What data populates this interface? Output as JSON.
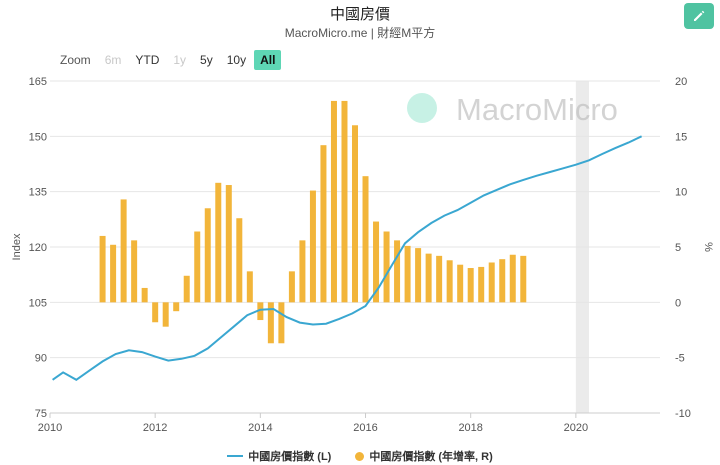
{
  "header": {
    "title": "中國房價",
    "subtitle": "MacroMicro.me | 財經M平方"
  },
  "toolbar": {
    "edit_icon": "pencil-icon"
  },
  "zoom": {
    "label": "Zoom",
    "buttons": [
      {
        "label": "6m",
        "state": "disabled"
      },
      {
        "label": "YTD",
        "state": "normal"
      },
      {
        "label": "1y",
        "state": "disabled"
      },
      {
        "label": "5y",
        "state": "normal"
      },
      {
        "label": "10y",
        "state": "normal"
      },
      {
        "label": "All",
        "state": "active"
      }
    ]
  },
  "watermark": "MacroMicro",
  "legend": {
    "line_label": "中國房價指數 (L)",
    "bar_label": "中國房價指數 (年增率, R)"
  },
  "colors": {
    "line": "#3aa7d1",
    "bar": "#f2b53a",
    "recession": "#ebebeb",
    "watermark": "#5fd6b4"
  },
  "chart_data": {
    "type": "bar+line",
    "title": "中國房價",
    "y_left": {
      "label": "Index",
      "min": 75,
      "max": 165,
      "ticks": [
        75,
        90,
        105,
        120,
        135,
        150,
        165
      ]
    },
    "y_right": {
      "label": "%",
      "min": -10,
      "max": 20,
      "ticks": [
        -10,
        -5,
        0,
        5,
        10,
        15,
        20
      ]
    },
    "x_ticks": [
      "2010",
      "2012",
      "2014",
      "2016",
      "2018",
      "2020"
    ],
    "x_range": [
      2010.0,
      2021.6
    ],
    "shaded_period": [
      2020.0,
      2020.25
    ],
    "series": [
      {
        "name": "中國房價指數 (L)",
        "type": "line",
        "axis": "left",
        "points": [
          [
            2010.05,
            84.0
          ],
          [
            2010.25,
            86.0
          ],
          [
            2010.5,
            84.0
          ],
          [
            2010.75,
            86.5
          ],
          [
            2011.0,
            89.0
          ],
          [
            2011.25,
            91.0
          ],
          [
            2011.5,
            92.0
          ],
          [
            2011.75,
            91.5
          ],
          [
            2012.0,
            90.3
          ],
          [
            2012.25,
            89.2
          ],
          [
            2012.5,
            89.7
          ],
          [
            2012.75,
            90.5
          ],
          [
            2013.0,
            92.5
          ],
          [
            2013.25,
            95.5
          ],
          [
            2013.5,
            98.5
          ],
          [
            2013.75,
            101.5
          ],
          [
            2014.0,
            103.0
          ],
          [
            2014.25,
            103.2
          ],
          [
            2014.5,
            101.0
          ],
          [
            2014.75,
            99.5
          ],
          [
            2015.0,
            99.0
          ],
          [
            2015.25,
            99.2
          ],
          [
            2015.5,
            100.5
          ],
          [
            2015.75,
            102.0
          ],
          [
            2016.0,
            104.0
          ],
          [
            2016.25,
            109.0
          ],
          [
            2016.5,
            115.0
          ],
          [
            2016.75,
            121.0
          ],
          [
            2017.0,
            124.0
          ],
          [
            2017.25,
            126.5
          ],
          [
            2017.5,
            128.5
          ],
          [
            2017.75,
            130.0
          ],
          [
            2018.0,
            132.0
          ],
          [
            2018.25,
            134.0
          ],
          [
            2018.5,
            135.5
          ],
          [
            2018.75,
            137.0
          ],
          [
            2019.0,
            138.2
          ],
          [
            2019.25,
            139.3
          ],
          [
            2019.5,
            140.3
          ],
          [
            2019.75,
            141.3
          ],
          [
            2020.0,
            142.3
          ],
          [
            2020.25,
            143.5
          ],
          [
            2020.5,
            145.2
          ],
          [
            2020.75,
            146.8
          ],
          [
            2021.0,
            148.3
          ],
          [
            2021.25,
            150.0
          ]
        ]
      },
      {
        "name": "中國房價指數 (年增率, R)",
        "type": "bar",
        "axis": "right",
        "points": [
          [
            2011.0,
            6.0
          ],
          [
            2011.2,
            5.2
          ],
          [
            2011.4,
            9.3
          ],
          [
            2011.6,
            5.6
          ],
          [
            2011.8,
            1.3
          ],
          [
            2012.0,
            -1.8
          ],
          [
            2012.2,
            -2.2
          ],
          [
            2012.4,
            -0.8
          ],
          [
            2012.6,
            2.4
          ],
          [
            2012.8,
            6.4
          ],
          [
            2013.0,
            8.5
          ],
          [
            2013.2,
            10.8
          ],
          [
            2013.4,
            10.6
          ],
          [
            2013.6,
            7.6
          ],
          [
            2013.8,
            2.8
          ],
          [
            2014.0,
            -1.6
          ],
          [
            2014.2,
            -3.7
          ],
          [
            2014.4,
            -3.7
          ],
          [
            2014.6,
            2.8
          ],
          [
            2014.8,
            5.6
          ],
          [
            2015.0,
            10.1
          ],
          [
            2015.2,
            14.2
          ],
          [
            2015.4,
            18.2
          ],
          [
            2015.6,
            18.2
          ],
          [
            2015.8,
            16.0
          ],
          [
            2016.0,
            11.4
          ],
          [
            2016.2,
            7.3
          ],
          [
            2016.4,
            6.4
          ],
          [
            2016.6,
            5.6
          ],
          [
            2016.8,
            5.1
          ],
          [
            2017.0,
            4.9
          ],
          [
            2017.2,
            4.4
          ],
          [
            2017.4,
            4.2
          ],
          [
            2017.6,
            3.8
          ],
          [
            2017.8,
            3.4
          ],
          [
            2018.0,
            3.1
          ],
          [
            2018.2,
            3.2
          ],
          [
            2018.4,
            3.6
          ],
          [
            2018.6,
            3.9
          ],
          [
            2018.8,
            4.3
          ],
          [
            2019.0,
            4.2
          ]
        ]
      }
    ]
  }
}
